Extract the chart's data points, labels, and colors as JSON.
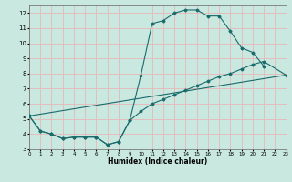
{
  "xlabel": "Humidex (Indice chaleur)",
  "xlim": [
    0,
    23
  ],
  "ylim": [
    3,
    12.5
  ],
  "yticks": [
    3,
    4,
    5,
    6,
    7,
    8,
    9,
    10,
    11,
    12
  ],
  "xticks": [
    0,
    1,
    2,
    3,
    4,
    5,
    6,
    7,
    8,
    9,
    10,
    11,
    12,
    13,
    14,
    15,
    16,
    17,
    18,
    19,
    20,
    21,
    22,
    23
  ],
  "background_color": "#c8e8e0",
  "grid_color": "#e8b8b8",
  "line_color": "#1a6b6b",
  "line1_x": [
    0,
    1,
    2,
    3,
    4,
    5,
    6,
    7,
    8,
    9,
    10,
    11,
    12,
    13,
    14,
    15,
    16,
    17,
    18,
    19,
    20,
    21
  ],
  "line1_y": [
    5.2,
    4.2,
    4.0,
    3.7,
    3.8,
    3.8,
    3.8,
    3.3,
    3.5,
    4.9,
    7.9,
    11.3,
    11.5,
    12.0,
    12.2,
    12.2,
    11.8,
    11.8,
    10.8,
    9.7,
    9.4,
    8.5
  ],
  "line2_x": [
    0,
    1,
    2,
    3,
    4,
    5,
    6,
    7,
    8,
    9,
    10,
    11,
    12,
    13,
    14,
    15,
    16,
    17,
    18,
    19,
    20,
    21,
    23
  ],
  "line2_y": [
    5.2,
    4.2,
    4.0,
    3.7,
    3.8,
    3.8,
    3.8,
    3.3,
    3.5,
    4.9,
    5.5,
    6.0,
    6.3,
    6.6,
    6.9,
    7.2,
    7.5,
    7.8,
    8.0,
    8.3,
    8.6,
    8.8,
    7.9
  ],
  "line3_x": [
    0,
    23
  ],
  "line3_y": [
    5.2,
    7.9
  ]
}
